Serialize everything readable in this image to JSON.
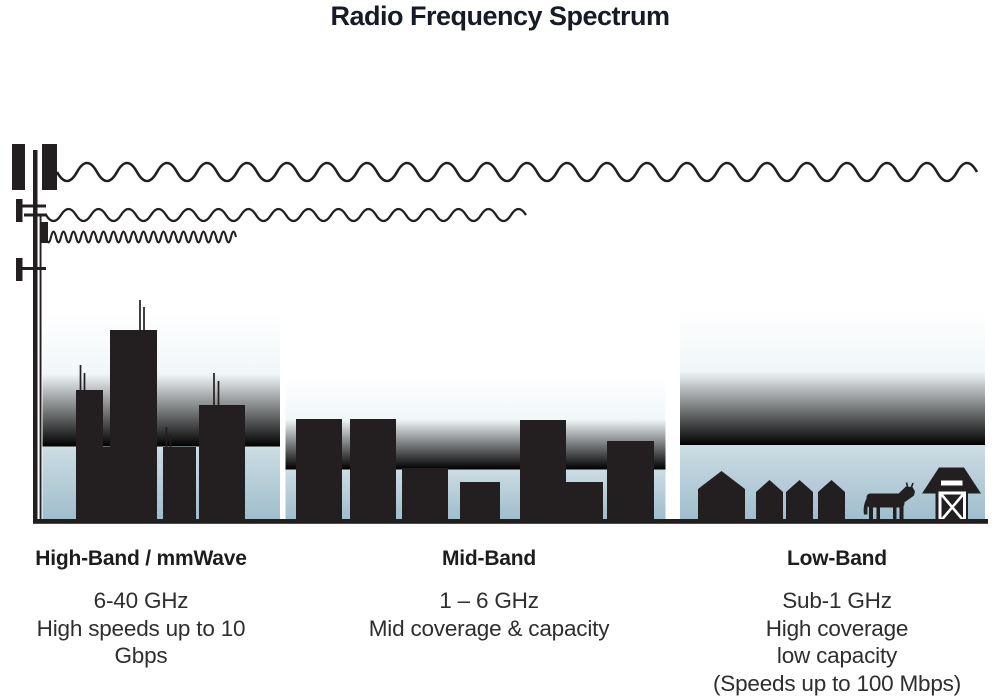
{
  "title": "Radio Frequency Spectrum",
  "bands": [
    {
      "id": "high-band",
      "label": "High-Band / mmWave",
      "lines": [
        "6-40 GHz",
        "High speeds up to 10 Gbps"
      ]
    },
    {
      "id": "mid-band",
      "label": "Mid-Band",
      "lines": [
        "1 – 6 GHz",
        "Mid coverage & capacity"
      ]
    },
    {
      "id": "low-band",
      "label": "Low-Band",
      "lines": [
        "Sub-1 GHz",
        "High coverage",
        "low capacity",
        "(Speeds up to 100 Mbps)"
      ]
    }
  ],
  "icons": {
    "tower": "cell-tower-icon",
    "high_wave": "short-wavelength-wave (reaches city only)",
    "mid_wave": "medium-wavelength-wave (reaches mid area)",
    "low_wave": "long-wavelength-wave (reaches farm)",
    "high_scene": "city-skyscrapers",
    "mid_scene": "mid-rise-buildings",
    "low_scene": "rural-houses-cow-barn"
  },
  "colors": {
    "silhouette": "#231f20",
    "sky_bottom": "#9fbecd",
    "title_text": "#161b26",
    "body_text": "#2e2e2e"
  }
}
